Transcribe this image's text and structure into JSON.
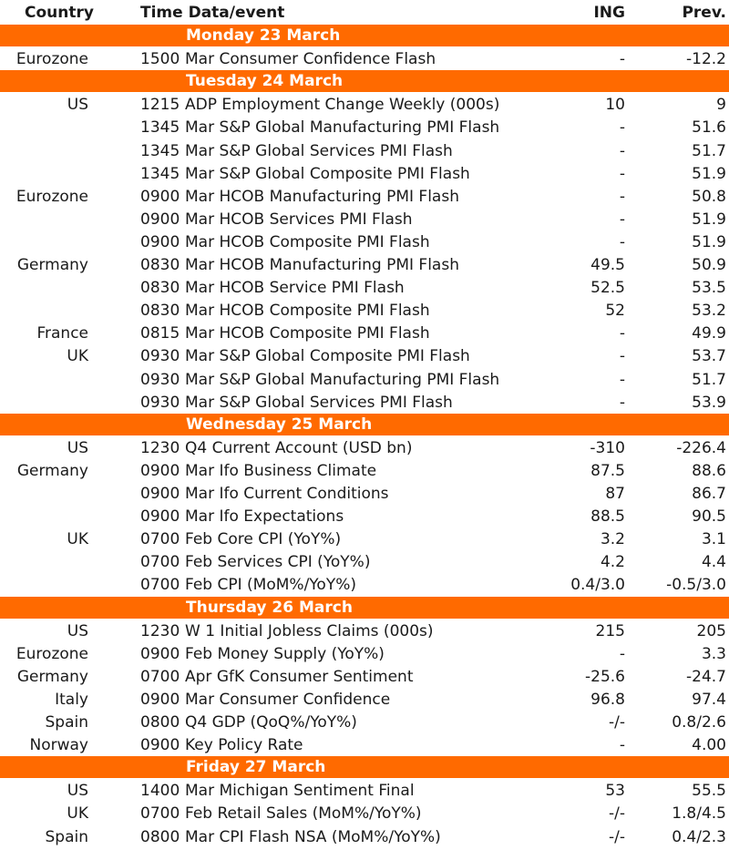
{
  "header": {
    "country": "Country",
    "time_event": "Time Data/event",
    "ing": "ING",
    "prev": "Prev."
  },
  "accent_color": "#ff6a00",
  "days": [
    {
      "label": "Monday 23 March",
      "rows": [
        {
          "country": "Eurozone",
          "time": "1500",
          "event": "Mar Consumer Confidence Flash",
          "ing": "-",
          "prev": "-12.2"
        }
      ]
    },
    {
      "label": "Tuesday 24 March",
      "rows": [
        {
          "country": "US",
          "time": "1215",
          "event": "ADP Employment Change Weekly (000s)",
          "ing": "10",
          "prev": "9"
        },
        {
          "country": "",
          "time": "1345",
          "event": "Mar S&P Global Manufacturing PMI Flash",
          "ing": "-",
          "prev": "51.6"
        },
        {
          "country": "",
          "time": "1345",
          "event": "Mar S&P Global Services PMI Flash",
          "ing": "-",
          "prev": "51.7"
        },
        {
          "country": "",
          "time": "1345",
          "event": "Mar S&P Global Composite PMI Flash",
          "ing": "-",
          "prev": "51.9"
        },
        {
          "country": "Eurozone",
          "time": "0900",
          "event": "Mar HCOB Manufacturing PMI Flash",
          "ing": "-",
          "prev": "50.8"
        },
        {
          "country": "",
          "time": "0900",
          "event": "Mar HCOB Services PMI Flash",
          "ing": "-",
          "prev": "51.9"
        },
        {
          "country": "",
          "time": "0900",
          "event": "Mar HCOB Composite PMI Flash",
          "ing": "-",
          "prev": "51.9"
        },
        {
          "country": "Germany",
          "time": "0830",
          "event": "Mar HCOB Manufacturing PMI Flash",
          "ing": "49.5",
          "prev": "50.9"
        },
        {
          "country": "",
          "time": "0830",
          "event": "Mar HCOB Service PMI Flash",
          "ing": "52.5",
          "prev": "53.5"
        },
        {
          "country": "",
          "time": "0830",
          "event": "Mar HCOB Composite PMI Flash",
          "ing": "52",
          "prev": "53.2"
        },
        {
          "country": "France",
          "time": "0815",
          "event": "Mar HCOB Composite PMI Flash",
          "ing": "-",
          "prev": "49.9"
        },
        {
          "country": "UK",
          "time": "0930",
          "event": "Mar S&P Global Composite PMI Flash",
          "ing": "-",
          "prev": "53.7"
        },
        {
          "country": "",
          "time": "0930",
          "event": "Mar S&P Global Manufacturing PMI Flash",
          "ing": "-",
          "prev": "51.7"
        },
        {
          "country": "",
          "time": "0930",
          "event": "Mar S&P Global Services PMI Flash",
          "ing": "-",
          "prev": "53.9"
        }
      ]
    },
    {
      "label": "Wednesday 25 March",
      "rows": [
        {
          "country": "US",
          "time": "1230",
          "event": "Q4 Current Account (USD bn)",
          "ing": "-310",
          "prev": "-226.4"
        },
        {
          "country": "Germany",
          "time": "0900",
          "event": "Mar Ifo Business Climate",
          "ing": "87.5",
          "prev": "88.6"
        },
        {
          "country": "",
          "time": "0900",
          "event": "Mar Ifo Current Conditions",
          "ing": "87",
          "prev": "86.7"
        },
        {
          "country": "",
          "time": "0900",
          "event": "Mar Ifo Expectations",
          "ing": "88.5",
          "prev": "90.5"
        },
        {
          "country": "UK",
          "time": "0700",
          "event": "Feb Core CPI (YoY%)",
          "ing": "3.2",
          "prev": "3.1"
        },
        {
          "country": "",
          "time": "0700",
          "event": "Feb Services CPI (YoY%)",
          "ing": "4.2",
          "prev": "4.4"
        },
        {
          "country": "",
          "time": "0700",
          "event": "Feb CPI (MoM%/YoY%)",
          "ing": "0.4/3.0",
          "prev": "-0.5/3.0"
        }
      ]
    },
    {
      "label": "Thursday 26 March",
      "rows": [
        {
          "country": "US",
          "time": "1230",
          "event": "W 1 Initial Jobless Claims (000s)",
          "ing": "215",
          "prev": "205"
        },
        {
          "country": "Eurozone",
          "time": "0900",
          "event": "Feb Money Supply (YoY%)",
          "ing": "-",
          "prev": "3.3"
        },
        {
          "country": "Germany",
          "time": "0700",
          "event": "Apr GfK Consumer Sentiment",
          "ing": "-25.6",
          "prev": "-24.7"
        },
        {
          "country": "Italy",
          "time": "0900",
          "event": "Mar Consumer Confidence",
          "ing": "96.8",
          "prev": "97.4"
        },
        {
          "country": "Spain",
          "time": "0800",
          "event": "Q4 GDP (QoQ%/YoY%)",
          "ing": "-/-",
          "prev": "0.8/2.6"
        },
        {
          "country": "Norway",
          "time": "0900",
          "event": "Key Policy Rate",
          "ing": "-",
          "prev": "4.00"
        }
      ]
    },
    {
      "label": "Friday 27 March",
      "rows": [
        {
          "country": "US",
          "time": "1400",
          "event": "Mar Michigan Sentiment Final",
          "ing": "53",
          "prev": "55.5"
        },
        {
          "country": "UK",
          "time": "0700",
          "event": "Feb Retail Sales (MoM%/YoY%)",
          "ing": "-/-",
          "prev": "1.8/4.5"
        },
        {
          "country": "Spain",
          "time": "0800",
          "event": "Mar CPI Flash NSA (MoM%/YoY%)",
          "ing": "-/-",
          "prev": "0.4/2.3"
        }
      ]
    }
  ]
}
